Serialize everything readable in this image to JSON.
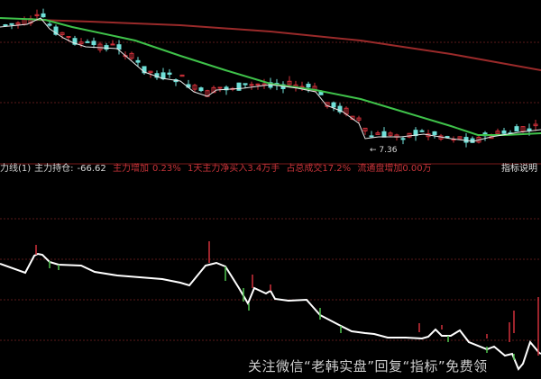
{
  "chart_data": {
    "type": "candlestick",
    "price_low_label": "7.36",
    "series": [
      {
        "kind": "ma-short",
        "color": "#e8e8e8"
      },
      {
        "kind": "ma-mid",
        "color": "#3fc24a"
      },
      {
        "kind": "ma-long",
        "color": "#9a2a2a"
      }
    ],
    "indicator": {
      "kind": "line",
      "color": "#ffffff",
      "up_bar_color": "#d0303a",
      "down_bar_color": "#4ec24e"
    }
  },
  "info": {
    "indicator_name": "力线(1)",
    "holding_label": "主力持仓:",
    "holding_value": "-66.62",
    "increase": "主力增加",
    "increase_value": "0.23%",
    "net_buy": "1天主力净买入3.4万手",
    "share": "占总成交17.2%",
    "float": "流通盘增加0.00万",
    "help": "指标说明"
  },
  "watermark": "关注微信“老韩实盘”回复“指标”免费领",
  "colors": {
    "up": "#d0303a",
    "down": "#6fe0d8",
    "grid": "#5a1a1a"
  }
}
